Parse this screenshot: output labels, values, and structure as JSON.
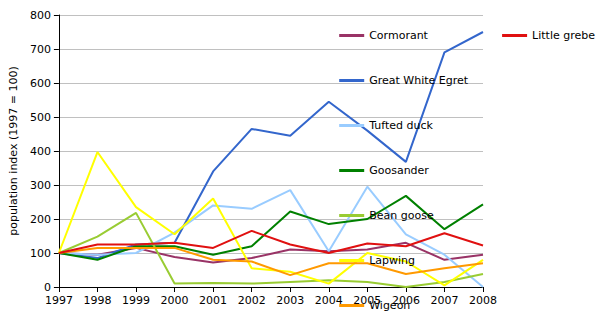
{
  "chart_data": {
    "type": "line",
    "y_label": "population index (1997 = 100)",
    "categories": [
      "1997",
      "1998",
      "1999",
      "2000",
      "2001",
      "2002",
      "2003",
      "2004",
      "2005",
      "2006",
      "2007",
      "2008"
    ],
    "ylim": [
      0,
      800
    ],
    "yticks": [
      0,
      100,
      200,
      300,
      400,
      500,
      600,
      700,
      800
    ],
    "grid": true,
    "legend": "right",
    "series": [
      {
        "name": "Cormorant",
        "color": "#993366",
        "values": [
          100,
          95,
          115,
          88,
          72,
          85,
          110,
          105,
          110,
          130,
          80,
          95
        ]
      },
      {
        "name": "Great White Egret",
        "color": "#3366cc",
        "values": [
          100,
          85,
          125,
          130,
          340,
          465,
          445,
          545,
          460,
          368,
          690,
          750
        ]
      },
      {
        "name": "Tufted duck",
        "color": "#99ccff",
        "values": [
          100,
          95,
          100,
          160,
          240,
          230,
          285,
          105,
          295,
          155,
          95,
          0
        ]
      },
      {
        "name": "Goosander",
        "color": "#008000",
        "values": [
          100,
          80,
          120,
          120,
          95,
          120,
          222,
          185,
          200,
          268,
          170,
          243
        ]
      },
      {
        "name": "Bean goose",
        "color": "#99cc33",
        "values": [
          100,
          148,
          218,
          10,
          12,
          10,
          15,
          20,
          15,
          0,
          15,
          38
        ]
      },
      {
        "name": "Lapwing",
        "color": "#ffff00",
        "values": [
          100,
          397,
          235,
          155,
          260,
          55,
          45,
          10,
          100,
          75,
          5,
          80
        ]
      },
      {
        "name": "Wigeon",
        "color": "#ff9900",
        "values": [
          100,
          115,
          115,
          115,
          80,
          75,
          35,
          70,
          70,
          38,
          55,
          70
        ]
      },
      {
        "name": "Little grebe",
        "color": "#e01010",
        "values": [
          100,
          125,
          125,
          130,
          115,
          165,
          125,
          100,
          128,
          120,
          158,
          122
        ]
      }
    ]
  }
}
